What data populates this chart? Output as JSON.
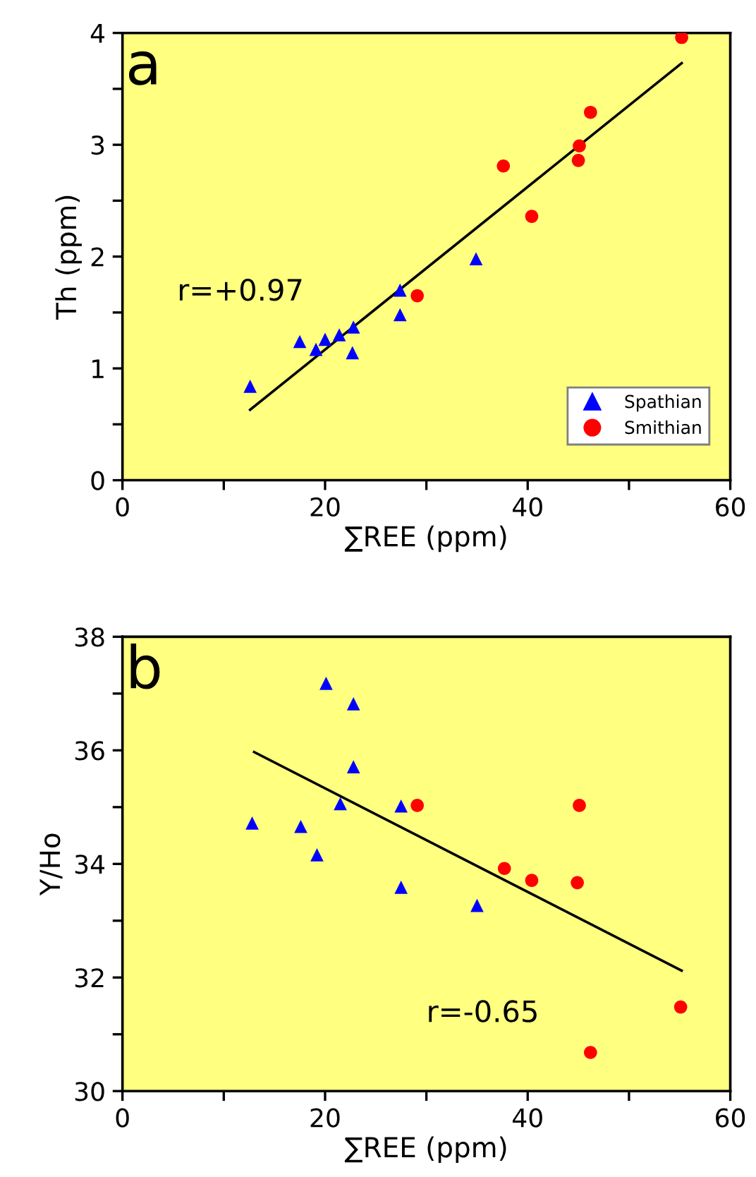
{
  "chart_data": [
    {
      "type": "scatter",
      "xlabel": "∑REE (ppm)",
      "ylabel": "Th (ppm)",
      "xlim": [
        0,
        60
      ],
      "ylim": [
        0,
        4
      ],
      "xticks": [
        0,
        {
          "value": 10,
          "label": null
        },
        20,
        {
          "value": 30,
          "label": null
        },
        40,
        {
          "value": 50,
          "label": null
        },
        60
      ],
      "yticks": [
        0,
        {
          "value": 0.5,
          "label": null
        },
        1,
        {
          "value": 1.5,
          "label": null
        },
        2,
        {
          "value": 2.5,
          "label": null
        },
        3,
        {
          "value": 3.5,
          "label": null
        },
        4
      ],
      "grid": false,
      "legend": "bottom right",
      "annotations": [
        "a",
        "r=+0.97"
      ],
      "series": [
        {
          "name": "Spathian",
          "color": "#0000ff",
          "marker": "triangle",
          "x": [
            12.6,
            17.5,
            19.1,
            20.0,
            21.4,
            22.8,
            22.7,
            27.4,
            27.4,
            34.9
          ],
          "values": [
            0.84,
            1.24,
            1.17,
            1.26,
            1.3,
            1.37,
            1.14,
            1.48,
            1.7,
            1.98
          ]
        },
        {
          "name": "Smithian",
          "color": "#ff0000",
          "marker": "circle",
          "x": [
            29.1,
            37.6,
            40.4,
            45.0,
            45.1,
            46.2,
            55.2
          ],
          "values": [
            1.65,
            2.81,
            2.36,
            2.86,
            2.99,
            3.29,
            3.96
          ]
        },
        {
          "type": "line",
          "color": "#000000",
          "marker": "none",
          "line_style": "solid",
          "x": [
            12.6,
            55.2
          ],
          "values": [
            0.63,
            3.73
          ]
        }
      ]
    },
    {
      "type": "scatter",
      "xlabel": "∑REE (ppm)",
      "ylabel": "Y/Ho",
      "xlim": [
        0,
        60
      ],
      "ylim": [
        30,
        38
      ],
      "xticks": [
        0,
        {
          "value": 10,
          "label": null
        },
        20,
        {
          "value": 30,
          "label": null
        },
        40,
        {
          "value": 50,
          "label": null
        },
        60
      ],
      "yticks": [
        30,
        {
          "value": 31,
          "label": null
        },
        32,
        {
          "value": 33,
          "label": null
        },
        34,
        {
          "value": 35,
          "label": null
        },
        36,
        {
          "value": 37,
          "label": null
        },
        38
      ],
      "grid": false,
      "annotations": [
        "b",
        "r=-0.65"
      ],
      "series": [
        {
          "color": "#0000ff",
          "marker": "triangle",
          "x": [
            12.8,
            17.6,
            19.2,
            20.1,
            21.5,
            22.8,
            22.8,
            27.5,
            27.5,
            35.0
          ],
          "values": [
            34.72,
            34.66,
            34.16,
            37.18,
            35.06,
            36.82,
            35.71,
            33.59,
            35.02,
            33.27
          ]
        },
        {
          "color": "#ff0000",
          "marker": "circle",
          "x": [
            29.1,
            37.7,
            40.4,
            44.9,
            45.1,
            46.2,
            55.1
          ],
          "values": [
            35.03,
            33.92,
            33.71,
            33.67,
            35.03,
            30.68,
            31.48
          ]
        },
        {
          "type": "line",
          "color": "#000000",
          "marker": "none",
          "line_style": "solid",
          "x": [
            13.0,
            55.2
          ],
          "values": [
            35.97,
            32.12
          ]
        }
      ]
    }
  ]
}
